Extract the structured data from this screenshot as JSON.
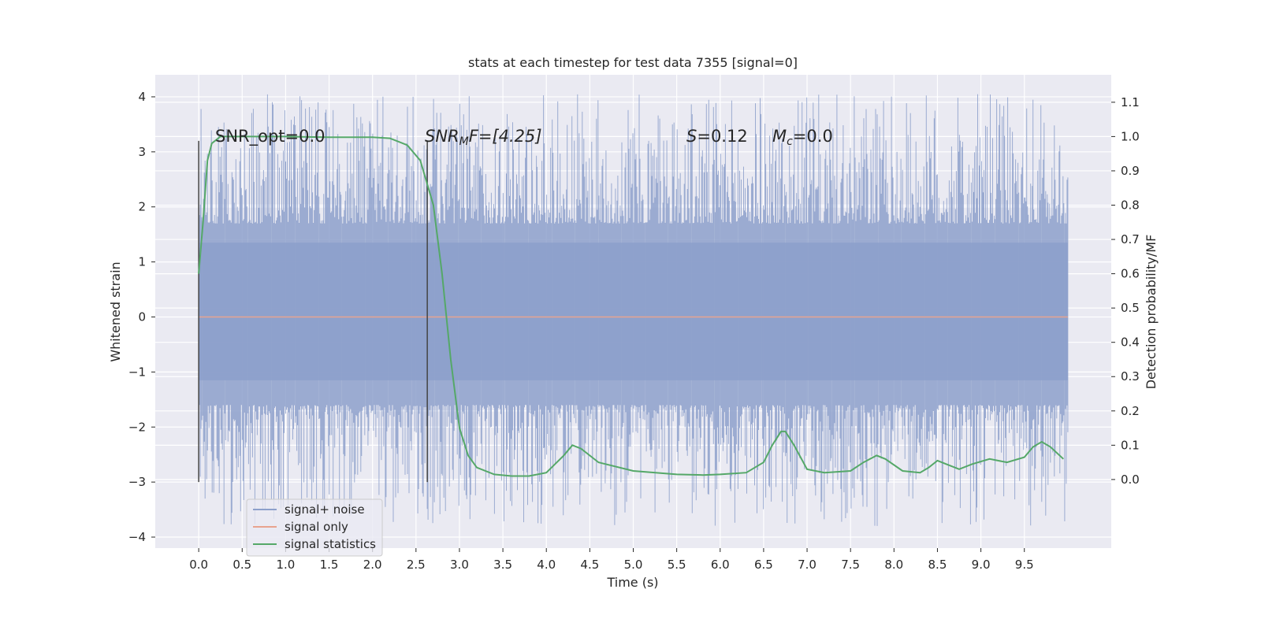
{
  "chart_data": {
    "type": "line",
    "title": "stats at each timestep for test data 7355 [signal=0]",
    "xlabel": "Time (s)",
    "ylabel_left": "Whitened strain",
    "ylabel_right": "Detection probability/MF",
    "xlim": [
      -0.5,
      10.5
    ],
    "ylim_left": [
      -4.2,
      4.4
    ],
    "ylim_right": [
      -0.2,
      1.18
    ],
    "x_ticks": [
      "0.0",
      "0.5",
      "1.0",
      "1.5",
      "2.0",
      "2.5",
      "3.0",
      "3.5",
      "4.0",
      "4.5",
      "5.0",
      "5.5",
      "6.0",
      "6.5",
      "7.0",
      "7.5",
      "8.0",
      "8.5",
      "9.0",
      "9.5"
    ],
    "y_left_ticks": [
      "4",
      "3",
      "2",
      "1",
      "0",
      "−1",
      "−2",
      "−3",
      "−4"
    ],
    "y_right_ticks": [
      "1.1",
      "1.0",
      "0.9",
      "0.8",
      "0.7",
      "0.6",
      "0.5",
      "0.4",
      "0.3",
      "0.2",
      "0.1",
      "0.0"
    ],
    "grid": true,
    "legend_placement": "lower-left",
    "annotations": {
      "snr_opt": "SNR_opt=0.0",
      "snr_mf_base": "SNR",
      "snr_mf_sub": "M",
      "snr_mf_tail": "F=[4.25]",
      "s_var": "S",
      "s_val": "=0.12",
      "mc_var": "M",
      "mc_sub": "c",
      "mc_val": "=0.0"
    },
    "vlines_x": [
      0.0,
      2.63
    ],
    "vline_range": [
      -3.0,
      3.2
    ],
    "series": [
      {
        "name": "signal+ noise",
        "axis": "left",
        "color": "#8da0cb",
        "x_range": [
          0.0,
          10.0
        ],
        "core_band": [
          -1.15,
          1.35
        ],
        "spike_range": [
          -3.8,
          4.05
        ]
      },
      {
        "name": "signal only",
        "axis": "left",
        "color": "#e8a38f",
        "x": [
          0.0,
          10.0
        ],
        "y": [
          0.0,
          0.0
        ]
      },
      {
        "name": "signal statistics",
        "axis": "right",
        "color": "#55a868",
        "x": [
          0.0,
          0.05,
          0.1,
          0.15,
          0.25,
          0.5,
          1.0,
          1.5,
          2.0,
          2.2,
          2.4,
          2.55,
          2.7,
          2.8,
          2.9,
          3.0,
          3.1,
          3.2,
          3.4,
          3.6,
          3.8,
          4.0,
          4.2,
          4.3,
          4.4,
          4.6,
          5.0,
          5.5,
          5.8,
          6.0,
          6.3,
          6.5,
          6.6,
          6.7,
          6.75,
          6.85,
          7.0,
          7.2,
          7.5,
          7.65,
          7.8,
          7.9,
          8.1,
          8.3,
          8.4,
          8.5,
          8.6,
          8.75,
          8.9,
          9.1,
          9.3,
          9.5,
          9.6,
          9.7,
          9.8,
          9.95
        ],
        "y": [
          0.6,
          0.75,
          0.93,
          0.98,
          1.0,
          1.0,
          1.0,
          0.998,
          0.998,
          0.995,
          0.975,
          0.93,
          0.8,
          0.6,
          0.35,
          0.15,
          0.07,
          0.035,
          0.015,
          0.01,
          0.01,
          0.02,
          0.07,
          0.1,
          0.09,
          0.05,
          0.025,
          0.015,
          0.013,
          0.015,
          0.02,
          0.05,
          0.1,
          0.14,
          0.14,
          0.1,
          0.03,
          0.02,
          0.025,
          0.05,
          0.07,
          0.06,
          0.025,
          0.02,
          0.035,
          0.055,
          0.045,
          0.03,
          0.045,
          0.06,
          0.05,
          0.065,
          0.095,
          0.11,
          0.095,
          0.06
        ]
      }
    ]
  }
}
